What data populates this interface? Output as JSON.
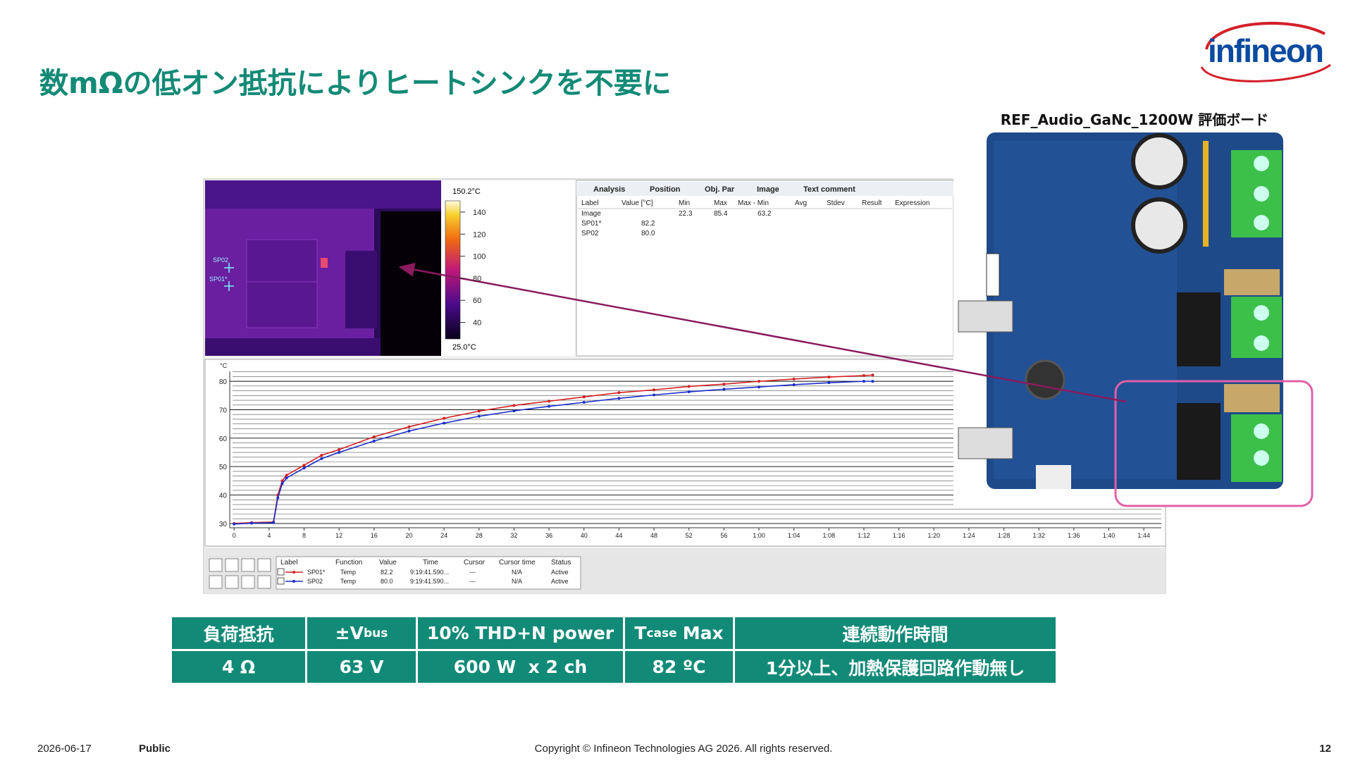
{
  "header": {
    "title": "数mΩの低オン抵抗によりヒートシンクを不要に",
    "logo": "infineon"
  },
  "board_caption": "REF_Audio_GaNc_1200W 評価ボード",
  "thermal": {
    "scale_max": "150.2°C",
    "scale_min": "25.0°C",
    "scale_ticks": [
      140,
      120,
      100,
      80,
      60,
      40
    ],
    "spots": [
      "SP02",
      "SP01*"
    ]
  },
  "analysis": {
    "tabs": [
      "Analysis",
      "Position",
      "Obj. Par",
      "Image",
      "Text comment"
    ],
    "columns": [
      "Label",
      "Value [°C]",
      "Min",
      "Max",
      "Max - Min",
      "Avg",
      "Stdev",
      "Result",
      "Expression"
    ],
    "image_row": {
      "label": "Image",
      "min": "22.3",
      "max": "85.4",
      "range": "63.2"
    },
    "spot_rows": [
      {
        "label": "SP01*",
        "value": "82.2"
      },
      {
        "label": "SP02",
        "value": "80.0"
      }
    ]
  },
  "chart_data": {
    "type": "line",
    "ylabel": "°C",
    "x": [
      0,
      2,
      4.5,
      5,
      5.5,
      6,
      8,
      10,
      12,
      16,
      20,
      24,
      28,
      32,
      36,
      40,
      44,
      48,
      52,
      56,
      60,
      64,
      68,
      72,
      73
    ],
    "series": [
      {
        "name": "SP01*",
        "color": "#d42020",
        "values": [
          30,
          30.3,
          30.5,
          40,
          45,
          47,
          50.5,
          54,
          56,
          60.5,
          64,
          67,
          69.5,
          71.5,
          73,
          74.5,
          76,
          77,
          78.2,
          79,
          80,
          80.8,
          81.5,
          82,
          82.2
        ]
      },
      {
        "name": "SP02",
        "color": "#1a2ecc",
        "values": [
          29.8,
          30.1,
          30.3,
          39,
          44,
          46,
          49.5,
          52.8,
          55,
          59,
          62.5,
          65.3,
          67.7,
          69.6,
          71.2,
          72.6,
          74,
          75.2,
          76.3,
          77.2,
          78,
          78.8,
          79.5,
          80,
          80
        ]
      }
    ],
    "xlim": [
      -0.5,
      106
    ],
    "ylim": [
      28.5,
      83.5
    ],
    "xticks": [
      0,
      4,
      8,
      12,
      16,
      20,
      24,
      28,
      32,
      36,
      40,
      44,
      48,
      52,
      56,
      {
        "value": 60,
        "label": "1:00"
      },
      {
        "value": 64,
        "label": "1:04"
      },
      {
        "value": 68,
        "label": "1:08"
      },
      {
        "value": 72,
        "label": "1:12"
      },
      {
        "value": 76,
        "label": "1:16"
      },
      {
        "value": 80,
        "label": "1:20"
      },
      {
        "value": 84,
        "label": "1:24"
      },
      {
        "value": 88,
        "label": "1:28"
      },
      {
        "value": 92,
        "label": "1:32"
      },
      {
        "value": 96,
        "label": "1:36"
      },
      {
        "value": 100,
        "label": "1:40"
      },
      {
        "value": 104,
        "label": "1:44"
      }
    ],
    "yticks": [
      30,
      40,
      50,
      60,
      70,
      80
    ],
    "grid": true
  },
  "legend_table": {
    "columns": [
      "Label",
      "Function",
      "Value",
      "Time",
      "Cursor",
      "Cursor time",
      "Status"
    ],
    "rows": [
      [
        "Temp",
        "82.2",
        "9:19:41.590...",
        "---",
        "N/A",
        "Active"
      ],
      [
        "Temp",
        "80.0",
        "9:19:41.590...",
        "---",
        "N/A",
        "Active"
      ]
    ]
  },
  "spec_table": {
    "header": [
      {
        "text": "負荷抵抗"
      },
      {
        "text": "±V",
        "sub": "bus"
      },
      {
        "text": "10% THD+N power"
      },
      {
        "text": "T",
        "sub": "case",
        "tail": "Max"
      },
      {
        "text": "連続動作時間"
      }
    ],
    "row": [
      "4 Ω",
      "63 V",
      "600 W  x 2 ch",
      "82 ºC",
      "1分以上、加熱保護回路作動無し"
    ]
  },
  "footer": {
    "date": "2026-06-17",
    "classification": "Public",
    "copyright": "Copyright © Infineon Technologies AG 2026. All rights reserved.",
    "page": "12"
  }
}
